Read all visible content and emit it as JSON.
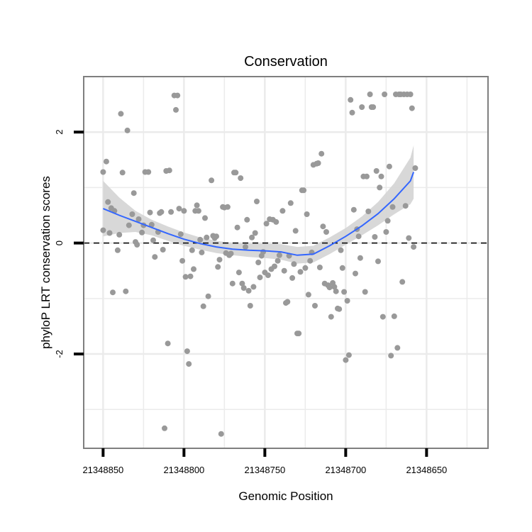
{
  "chart_data": {
    "type": "scatter",
    "title": "Conservation",
    "xlabel": "Genomic Position",
    "ylabel": "phyloP LRT conservation scores",
    "x_reversed": true,
    "xlim": [
      21348862,
      21348612
    ],
    "ylim": [
      -3.7,
      3.0
    ],
    "x_ticks": [
      21348850,
      21348800,
      21348750,
      21348700,
      21348650
    ],
    "x_tick_labels": [
      "21348850",
      "21348800",
      "21348750",
      "21348700",
      "21348650"
    ],
    "y_ticks": [
      2,
      0,
      -2
    ],
    "y_tick_labels": [
      "2",
      "0",
      "-2"
    ],
    "grid": true,
    "reference_line": {
      "y": 0,
      "style": "dashed"
    },
    "colors": {
      "points": "#999999",
      "smooth": "#3366ff",
      "band": "#d4d4d4",
      "grid": "#ebebeb",
      "border": "#7f7f7f"
    },
    "series": [
      {
        "name": "scores",
        "points": [
          [
            21348850,
            1.28
          ],
          [
            21348850,
            0.23
          ],
          [
            21348848,
            1.47
          ],
          [
            21348847,
            0.74
          ],
          [
            21348846,
            0.18
          ],
          [
            21348845,
            0.63
          ],
          [
            21348844,
            -0.89
          ],
          [
            21348843,
            0.58
          ],
          [
            21348841,
            -0.13
          ],
          [
            21348840,
            0.15
          ],
          [
            21348839,
            2.33
          ],
          [
            21348838,
            1.27
          ],
          [
            21348836,
            -0.87
          ],
          [
            21348835,
            2.03
          ],
          [
            21348834,
            0.32
          ],
          [
            21348832,
            0.52
          ],
          [
            21348831,
            0.9
          ],
          [
            21348830,
            0.02
          ],
          [
            21348829,
            -0.03
          ],
          [
            21348828,
            0.43
          ],
          [
            21348826,
            0.19
          ],
          [
            21348825,
            0.32
          ],
          [
            21348824,
            1.28
          ],
          [
            21348822,
            1.28
          ],
          [
            21348821,
            0.55
          ],
          [
            21348820,
            0.33
          ],
          [
            21348819,
            0.05
          ],
          [
            21348818,
            -0.25
          ],
          [
            21348816,
            0.2
          ],
          [
            21348815,
            0.54
          ],
          [
            21348814,
            0.56
          ],
          [
            21348813,
            -0.12
          ],
          [
            21348812,
            -3.34
          ],
          [
            21348811,
            1.3
          ],
          [
            21348810,
            -1.81
          ],
          [
            21348809,
            1.31
          ],
          [
            21348808,
            0.56
          ],
          [
            21348806,
            2.66
          ],
          [
            21348805,
            2.4
          ],
          [
            21348804,
            2.66
          ],
          [
            21348803,
            0.62
          ],
          [
            21348802,
            0.16
          ],
          [
            21348801,
            -0.32
          ],
          [
            21348800,
            0.58
          ],
          [
            21348799,
            -0.61
          ],
          [
            21348798,
            -1.95
          ],
          [
            21348797,
            -2.18
          ],
          [
            21348796,
            -0.6
          ],
          [
            21348795,
            -0.13
          ],
          [
            21348794,
            -0.47
          ],
          [
            21348793,
            0.58
          ],
          [
            21348792,
            0.68
          ],
          [
            21348791,
            0.58
          ],
          [
            21348790,
            0.06
          ],
          [
            21348789,
            -0.17
          ],
          [
            21348788,
            -1.14
          ],
          [
            21348787,
            0.45
          ],
          [
            21348786,
            0.1
          ],
          [
            21348785,
            -0.96
          ],
          [
            21348783,
            1.13
          ],
          [
            21348782,
            0.13
          ],
          [
            21348781,
            0.09
          ],
          [
            21348780,
            0.12
          ],
          [
            21348779,
            -0.43
          ],
          [
            21348778,
            -0.3
          ],
          [
            21348777,
            -3.44
          ],
          [
            21348776,
            0.65
          ],
          [
            21348775,
            0.64
          ],
          [
            21348774,
            -0.18
          ],
          [
            21348773,
            0.65
          ],
          [
            21348772,
            -0.22
          ],
          [
            21348771,
            -0.19
          ],
          [
            21348770,
            -0.73
          ],
          [
            21348769,
            1.27
          ],
          [
            21348768,
            1.27
          ],
          [
            21348767,
            0.28
          ],
          [
            21348766,
            -0.53
          ],
          [
            21348765,
            1.17
          ],
          [
            21348764,
            -0.73
          ],
          [
            21348763,
            -0.81
          ],
          [
            21348762,
            -0.07
          ],
          [
            21348761,
            0.42
          ],
          [
            21348760,
            -0.86
          ],
          [
            21348759,
            -1.13
          ],
          [
            21348758,
            0.1
          ],
          [
            21348757,
            -0.79
          ],
          [
            21348756,
            0.18
          ],
          [
            21348755,
            0.75
          ],
          [
            21348754,
            -0.35
          ],
          [
            21348753,
            -0.62
          ],
          [
            21348752,
            -0.23
          ],
          [
            21348751,
            -0.16
          ],
          [
            21348750,
            -0.53
          ],
          [
            21348749,
            0.35
          ],
          [
            21348748,
            -0.58
          ],
          [
            21348747,
            0.43
          ],
          [
            21348746,
            -0.47
          ],
          [
            21348745,
            0.42
          ],
          [
            21348744,
            -0.42
          ],
          [
            21348743,
            0.38
          ],
          [
            21348742,
            -0.32
          ],
          [
            21348741,
            -0.22
          ],
          [
            21348739,
            0.58
          ],
          [
            21348738,
            -0.5
          ],
          [
            21348737,
            -1.08
          ],
          [
            21348736,
            -1.06
          ],
          [
            21348735,
            -0.23
          ],
          [
            21348734,
            0.72
          ],
          [
            21348733,
            -0.63
          ],
          [
            21348732,
            -0.38
          ],
          [
            21348731,
            0.22
          ],
          [
            21348730,
            -1.63
          ],
          [
            21348729,
            -1.63
          ],
          [
            21348728,
            -0.52
          ],
          [
            21348727,
            0.95
          ],
          [
            21348726,
            0.95
          ],
          [
            21348725,
            -0.45
          ],
          [
            21348724,
            0.52
          ],
          [
            21348723,
            -0.93
          ],
          [
            21348722,
            -0.32
          ],
          [
            21348721,
            -0.17
          ],
          [
            21348720,
            1.41
          ],
          [
            21348719,
            -1.13
          ],
          [
            21348718,
            1.43
          ],
          [
            21348717,
            1.44
          ],
          [
            21348716,
            -0.44
          ],
          [
            21348715,
            1.61
          ],
          [
            21348714,
            0.3
          ],
          [
            21348713,
            -0.73
          ],
          [
            21348712,
            0.2
          ],
          [
            21348711,
            -0.76
          ],
          [
            21348710,
            -0.8
          ],
          [
            21348709,
            -1.33
          ],
          [
            21348708,
            -0.72
          ],
          [
            21348707,
            -0.79
          ],
          [
            21348706,
            -0.87
          ],
          [
            21348705,
            -1.18
          ],
          [
            21348704,
            -1.19
          ],
          [
            21348703,
            -0.13
          ],
          [
            21348702,
            -0.45
          ],
          [
            21348701,
            -0.88
          ],
          [
            21348700,
            -2.11
          ],
          [
            21348699,
            -1.04
          ],
          [
            21348698,
            -2.02
          ],
          [
            21348697,
            2.58
          ],
          [
            21348696,
            2.35
          ],
          [
            21348695,
            0.6
          ],
          [
            21348694,
            -0.55
          ],
          [
            21348693,
            0.25
          ],
          [
            21348692,
            0.12
          ],
          [
            21348691,
            -0.27
          ],
          [
            21348690,
            2.45
          ],
          [
            21348689,
            1.2
          ],
          [
            21348688,
            -0.88
          ],
          [
            21348687,
            1.2
          ],
          [
            21348686,
            0.57
          ],
          [
            21348685,
            2.68
          ],
          [
            21348684,
            2.45
          ],
          [
            21348683,
            2.45
          ],
          [
            21348682,
            0.11
          ],
          [
            21348681,
            1.3
          ],
          [
            21348680,
            -0.33
          ],
          [
            21348679,
            1.0
          ],
          [
            21348678,
            1.2
          ],
          [
            21348677,
            -1.33
          ],
          [
            21348676,
            2.68
          ],
          [
            21348675,
            0.2
          ],
          [
            21348674,
            0.4
          ],
          [
            21348673,
            1.38
          ],
          [
            21348672,
            -2.03
          ],
          [
            21348671,
            0.65
          ],
          [
            21348670,
            -1.32
          ],
          [
            21348669,
            2.68
          ],
          [
            21348668,
            -1.89
          ],
          [
            21348667,
            2.68
          ],
          [
            21348666,
            2.68
          ],
          [
            21348665,
            -0.7
          ],
          [
            21348664,
            2.68
          ],
          [
            21348663,
            0.67
          ],
          [
            21348662,
            2.68
          ],
          [
            21348661,
            0.09
          ],
          [
            21348660,
            2.68
          ],
          [
            21348659,
            2.43
          ],
          [
            21348658,
            -0.07
          ],
          [
            21348657,
            1.35
          ]
        ]
      }
    ],
    "smooth": {
      "x": [
        21348850,
        21348840,
        21348830,
        21348820,
        21348810,
        21348800,
        21348790,
        21348780,
        21348770,
        21348760,
        21348750,
        21348740,
        21348730,
        21348720,
        21348710,
        21348700,
        21348690,
        21348680,
        21348670,
        21348660,
        21348658
      ],
      "y": [
        0.62,
        0.5,
        0.39,
        0.28,
        0.17,
        0.07,
        -0.01,
        -0.07,
        -0.11,
        -0.13,
        -0.14,
        -0.16,
        -0.22,
        -0.2,
        -0.05,
        0.12,
        0.31,
        0.53,
        0.8,
        1.12,
        1.28
      ],
      "lower": [
        0.12,
        0.18,
        0.2,
        0.14,
        0.04,
        -0.05,
        -0.12,
        -0.18,
        -0.22,
        -0.25,
        -0.27,
        -0.3,
        -0.37,
        -0.35,
        -0.2,
        -0.03,
        0.14,
        0.32,
        0.52,
        0.7,
        0.8
      ],
      "upper": [
        1.12,
        0.82,
        0.58,
        0.42,
        0.3,
        0.19,
        0.1,
        0.04,
        0.0,
        -0.01,
        -0.01,
        -0.02,
        -0.07,
        -0.05,
        0.1,
        0.27,
        0.48,
        0.74,
        1.08,
        1.54,
        1.76
      ]
    }
  }
}
